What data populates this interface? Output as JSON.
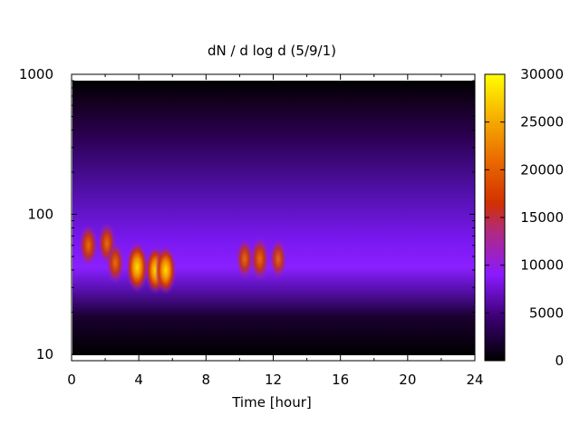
{
  "chart_data": {
    "type": "heatmap",
    "title": "dN / d log d (5/9/1)",
    "xlabel": "Time [hour]",
    "ylabel": "",
    "xlim": [
      0,
      24
    ],
    "ylim": [
      9,
      1000
    ],
    "y_scale": "log",
    "x_ticks": [
      0,
      4,
      8,
      12,
      16,
      20,
      24
    ],
    "y_ticks": [
      10,
      100,
      1000
    ],
    "colorbar": {
      "range": [
        0,
        30000
      ],
      "ticks": [
        0,
        5000,
        10000,
        15000,
        20000,
        25000,
        30000
      ],
      "colormap": "gnuplot (black-purple-red-orange-yellow)"
    },
    "grid": false,
    "legend": "none",
    "hotspots": [
      {
        "time": 1.0,
        "diameter": 60,
        "value": 17000
      },
      {
        "time": 2.1,
        "diameter": 62,
        "value": 16000
      },
      {
        "time": 2.6,
        "diameter": 45,
        "value": 15000
      },
      {
        "time": 3.9,
        "diameter": 42,
        "value": 26000
      },
      {
        "time": 5.0,
        "diameter": 40,
        "value": 23000
      },
      {
        "time": 5.6,
        "diameter": 40,
        "value": 24000
      },
      {
        "time": 10.3,
        "diameter": 48,
        "value": 14000
      },
      {
        "time": 11.2,
        "diameter": 48,
        "value": 18000
      },
      {
        "time": 12.3,
        "diameter": 48,
        "value": 13000
      }
    ]
  }
}
